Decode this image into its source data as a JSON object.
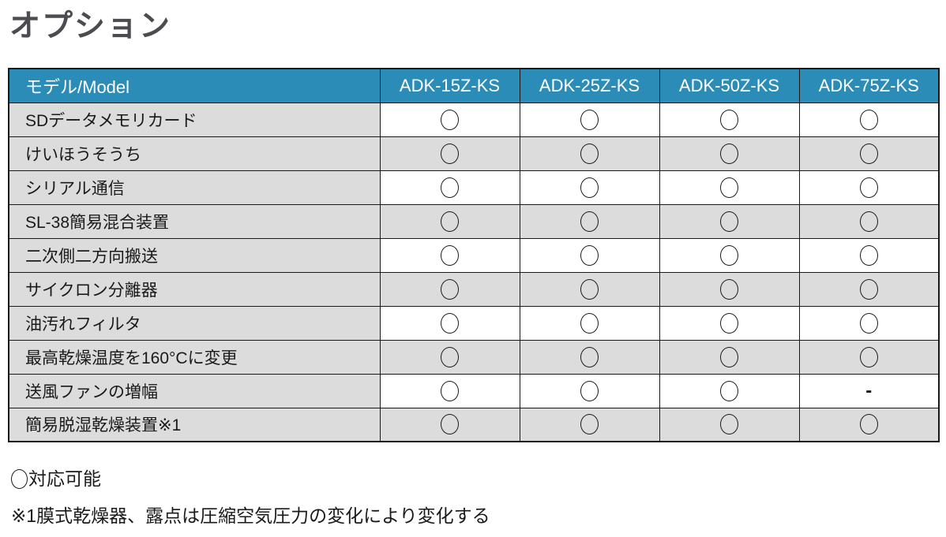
{
  "title": "オプション",
  "table": {
    "header": {
      "model_label": "モデル/Model",
      "model_columns": [
        "ADK-15Z-KS",
        "ADK-25Z-KS",
        "ADK-50Z-KS",
        "ADK-75Z-KS"
      ]
    },
    "rows": [
      {
        "label": "SDデータメモリカード",
        "values": [
          "○",
          "○",
          "○",
          "○"
        ]
      },
      {
        "label": "けいほうそうち",
        "values": [
          "○",
          "○",
          "○",
          "○"
        ]
      },
      {
        "label": "シリアル通信",
        "values": [
          "○",
          "○",
          "○",
          "○"
        ]
      },
      {
        "label": "SL-38簡易混合装置",
        "values": [
          "○",
          "○",
          "○",
          "○"
        ]
      },
      {
        "label": "二次側二方向搬送",
        "values": [
          "○",
          "○",
          "○",
          "○"
        ]
      },
      {
        "label": "サイクロン分離器",
        "values": [
          "○",
          "○",
          "○",
          "○"
        ]
      },
      {
        "label": "油汚れフィルタ",
        "values": [
          "○",
          "○",
          "○",
          "○"
        ]
      },
      {
        "label": "最高乾燥温度を160°Cに変更",
        "values": [
          "○",
          "○",
          "○",
          "○"
        ]
      },
      {
        "label": "送風ファンの増幅",
        "values": [
          "○",
          "○",
          "○",
          "-"
        ]
      },
      {
        "label": "簡易脱湿乾燥装置※1",
        "values": [
          "○",
          "○",
          "○",
          "○"
        ]
      }
    ]
  },
  "notes": [
    {
      "symbol": "○",
      "text": "対応可能"
    },
    {
      "symbol": "※1",
      "text": "膜式乾燥器、露点は圧縮空気圧力の変化により変化する"
    }
  ],
  "legend_symbols": {
    "available": "○",
    "not_available": "-"
  },
  "colors": {
    "header_bg": "#2b8cb8",
    "header_text": "#ffffff",
    "row_shade": "#dcdcdc",
    "row_white": "#ffffff",
    "border": "#1a1a1a",
    "title_text": "#4b4b50",
    "body_text": "#1a1a1a"
  }
}
